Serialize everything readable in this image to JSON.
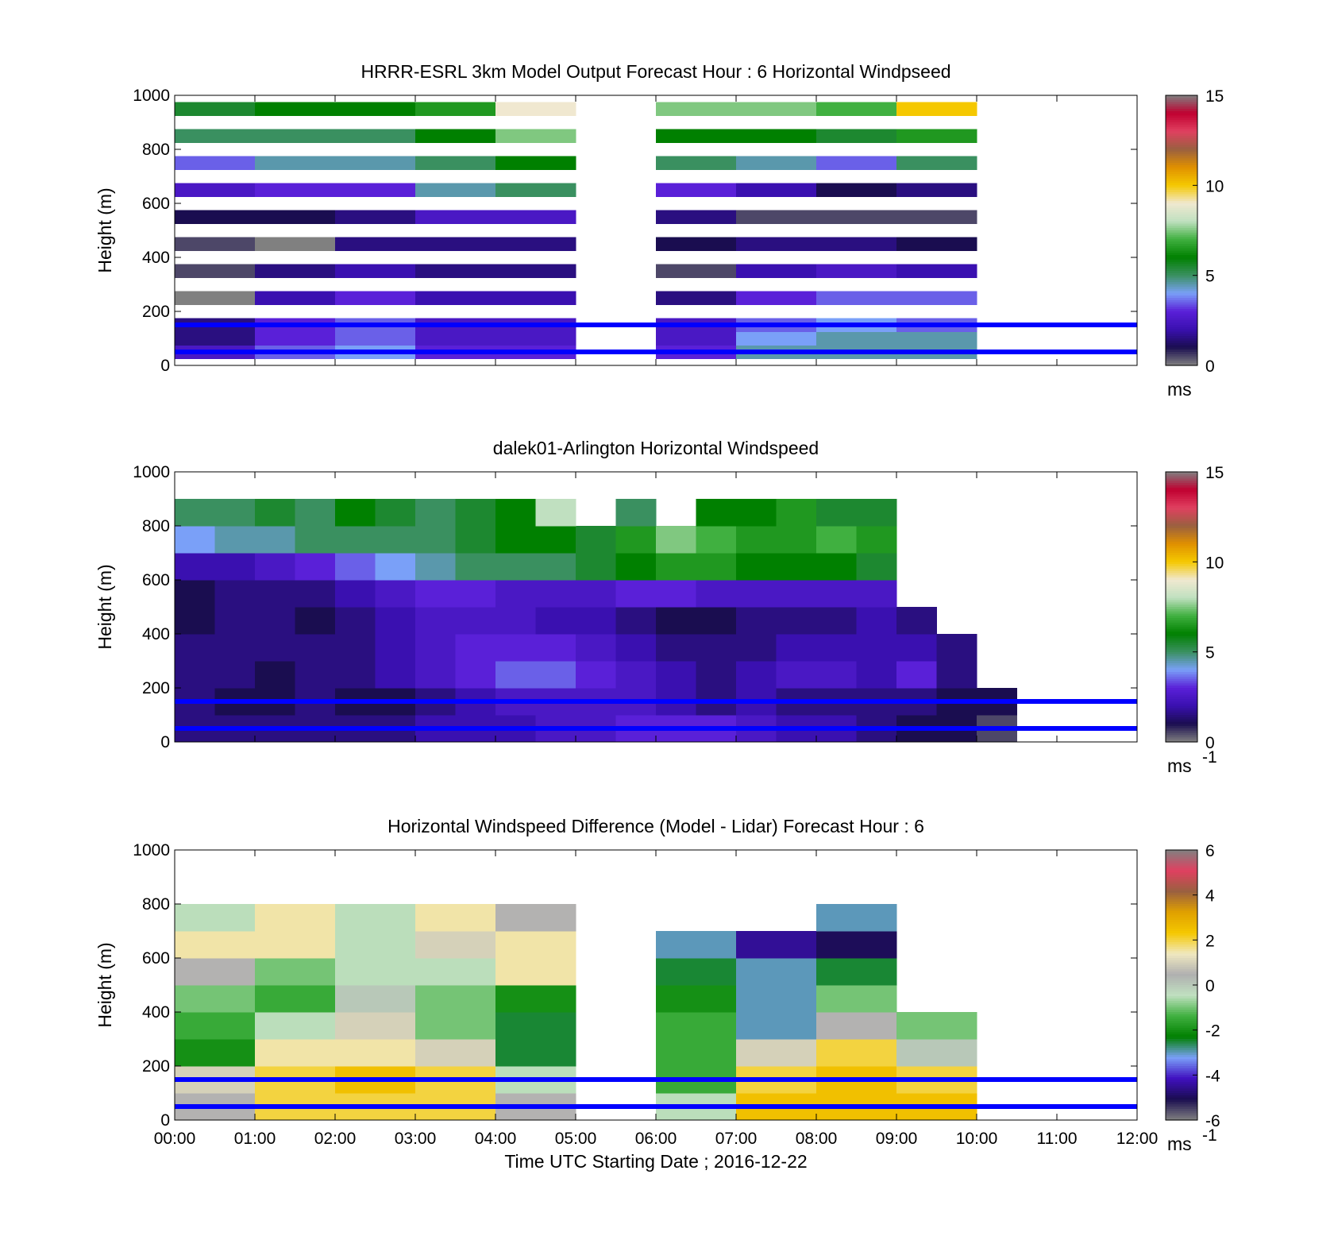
{
  "colors": {
    "background": "#ffffff",
    "reference_lines": "#0000ff",
    "speed_colormap": [
      "#808080",
      "#1a0d50",
      "#3a10b0",
      "#5a20d8",
      "#7aa0f8",
      "#3a9060",
      "#008000",
      "#40b040",
      "#c0e0c0",
      "#f0e8d0",
      "#f5c800",
      "#e09000",
      "#9a6040",
      "#e04060",
      "#c00030",
      "#808080"
    ],
    "diff_colormap": [
      "#808080",
      "#1a0d50",
      "#4010c0",
      "#7aa0f8",
      "#008000",
      "#40b040",
      "#c0e0c0",
      "#b0b0b0",
      "#f0e8c0",
      "#f5c800",
      "#e0a000",
      "#9a6040",
      "#e04060",
      "#808080"
    ]
  },
  "chart_data": [
    {
      "type": "heatmap",
      "title": "HRRR-ESRL 3km Model Output   Forecast Hour : 6 Horizontal Windpseed",
      "ylabel": "Height (m)",
      "xlabel": "",
      "ylim": [
        0,
        1000
      ],
      "yticks": [
        "0",
        "200",
        "400",
        "600",
        "800",
        "1000"
      ],
      "xticks": [
        "",
        "",
        "",
        "",
        "",
        "",
        "",
        "",
        "",
        "",
        "",
        "",
        ""
      ],
      "colorbar": {
        "min": 0,
        "max": 15,
        "ticks": [
          "0",
          "5",
          "10",
          "15"
        ],
        "unit": "ms"
      },
      "x_hours": [
        0.5,
        1.5,
        2.5,
        3.5,
        4.5,
        6.5,
        7.5,
        8.5,
        9.5
      ],
      "heights_m": [
        50,
        100,
        150,
        250,
        350,
        450,
        550,
        650,
        750,
        850,
        950
      ],
      "values": [
        [
          2.5,
          3.5,
          4.0,
          3.0,
          3.0,
          3.0,
          4.5,
          4.5,
          4.5
        ],
        [
          1.5,
          3.0,
          3.5,
          2.5,
          2.5,
          2.5,
          4.0,
          4.5,
          4.5
        ],
        [
          1.5,
          3.0,
          3.5,
          2.5,
          2.5,
          2.5,
          3.5,
          4.0,
          3.5
        ],
        [
          0.0,
          2.0,
          3.0,
          2.0,
          2.0,
          1.5,
          3.0,
          3.5,
          3.5
        ],
        [
          0.5,
          1.5,
          2.0,
          1.5,
          1.5,
          0.5,
          2.0,
          2.5,
          2.0
        ],
        [
          0.5,
          0.0,
          1.5,
          1.5,
          1.5,
          1.0,
          1.5,
          1.5,
          1.0
        ],
        [
          1.0,
          1.0,
          1.5,
          2.5,
          2.5,
          1.5,
          0.5,
          0.5,
          0.5
        ],
        [
          2.5,
          3.0,
          3.0,
          4.5,
          5.0,
          3.0,
          2.0,
          1.0,
          1.5
        ],
        [
          3.5,
          4.5,
          4.5,
          5.0,
          6.0,
          5.0,
          4.5,
          3.5,
          5.0
        ],
        [
          5.0,
          5.0,
          5.0,
          6.0,
          7.5,
          6.0,
          6.0,
          5.5,
          6.5
        ],
        [
          5.5,
          6.0,
          6.0,
          6.5,
          9.0,
          7.5,
          7.5,
          7.0,
          10.0
        ]
      ],
      "reference_lines_m": [
        50,
        150
      ]
    },
    {
      "type": "heatmap",
      "title": "dalek01-Arlington  Horizontal Windspeed",
      "ylabel": "Height (m)",
      "xlabel": "",
      "ylim": [
        0,
        1000
      ],
      "yticks": [
        "0",
        "200",
        "400",
        "600",
        "800",
        "1000"
      ],
      "xticks": [
        "",
        "",
        "",
        "",
        "",
        "",
        "",
        "",
        "",
        "",
        "",
        "",
        ""
      ],
      "colorbar": {
        "min": 0,
        "max": 15,
        "ticks": [
          "0",
          "5",
          "10",
          "15"
        ],
        "unit": "ms",
        "unit_exponent": "-1"
      },
      "x_hours": [
        0.25,
        0.75,
        1.25,
        1.75,
        2.25,
        2.75,
        3.25,
        3.75,
        4.25,
        4.75,
        5.25,
        5.75,
        6.25,
        6.75,
        7.25,
        7.75,
        8.25,
        8.75,
        9.25,
        9.75,
        10.25
      ],
      "heights_m": [
        50,
        150,
        250,
        350,
        450,
        550,
        650,
        750,
        850
      ],
      "values": [
        [
          1.5,
          1.5,
          1.5,
          1.5,
          1.5,
          1.5,
          2.0,
          2.0,
          2.0,
          2.5,
          2.5,
          3.0,
          3.0,
          3.0,
          2.5,
          2.0,
          2.0,
          1.5,
          1.0,
          1.0,
          0.5
        ],
        [
          1.5,
          1.0,
          1.0,
          1.5,
          1.0,
          1.0,
          1.5,
          2.0,
          2.5,
          2.5,
          2.5,
          2.5,
          2.0,
          1.5,
          2.0,
          1.5,
          1.5,
          1.5,
          1.5,
          1.0,
          1.0
        ],
        [
          1.5,
          1.5,
          1.0,
          1.5,
          1.5,
          2.0,
          2.5,
          3.0,
          3.5,
          3.5,
          3.0,
          2.5,
          2.0,
          1.5,
          2.0,
          2.5,
          2.5,
          2.0,
          3.0,
          1.5,
          null
        ],
        [
          1.5,
          1.5,
          1.5,
          1.5,
          1.5,
          2.0,
          2.5,
          3.0,
          3.0,
          3.0,
          2.5,
          2.0,
          1.5,
          1.5,
          1.5,
          2.0,
          2.0,
          2.0,
          2.0,
          1.5,
          null
        ],
        [
          1.0,
          1.5,
          1.5,
          1.0,
          1.5,
          2.0,
          2.5,
          2.5,
          2.5,
          2.0,
          2.0,
          1.5,
          1.0,
          1.0,
          1.5,
          1.5,
          1.5,
          2.0,
          1.5,
          null,
          null
        ],
        [
          1.0,
          1.5,
          1.5,
          1.5,
          2.0,
          2.5,
          3.0,
          3.0,
          2.5,
          2.5,
          2.5,
          3.0,
          3.0,
          2.5,
          2.5,
          2.5,
          2.5,
          2.5,
          null,
          null,
          null
        ],
        [
          2.0,
          2.0,
          2.5,
          3.0,
          3.5,
          4.0,
          4.5,
          5.0,
          5.0,
          5.0,
          5.5,
          6.0,
          6.5,
          6.5,
          6.0,
          6.0,
          6.0,
          5.5,
          null,
          null,
          null
        ],
        [
          4.0,
          4.5,
          4.5,
          5.0,
          5.0,
          5.0,
          5.0,
          5.5,
          6.0,
          6.0,
          5.5,
          6.5,
          7.5,
          7.0,
          6.5,
          6.5,
          7.0,
          6.5,
          null,
          null,
          null
        ],
        [
          5.0,
          5.0,
          5.5,
          5.0,
          6.0,
          5.5,
          5.0,
          5.5,
          6.0,
          8.0,
          null,
          5.0,
          null,
          6.0,
          6.0,
          6.5,
          5.5,
          5.5,
          null,
          null,
          null
        ]
      ],
      "reference_lines_m": [
        50,
        150
      ]
    },
    {
      "type": "heatmap",
      "title": "Horizontal Windspeed Difference (Model - Lidar) Forecast Hour : 6",
      "ylabel": "Height (m)",
      "xlabel": "Time UTC  Starting Date ; 2016-12-22",
      "ylim": [
        0,
        1000
      ],
      "yticks": [
        "0",
        "200",
        "400",
        "600",
        "800",
        "1000"
      ],
      "xticks": [
        "00:00",
        "01:00",
        "02:00",
        "03:00",
        "04:00",
        "05:00",
        "06:00",
        "07:00",
        "08:00",
        "09:00",
        "10:00",
        "11:00",
        "12:00"
      ],
      "colorbar": {
        "min": -6,
        "max": 6,
        "ticks": [
          "-6",
          "-4",
          "-2",
          "0",
          "2",
          "4",
          "6"
        ],
        "unit": "ms",
        "unit_exponent": "-1"
      },
      "x_hours": [
        0.5,
        1.5,
        2.5,
        3.5,
        4.5,
        6.5,
        7.5,
        8.5,
        9.5
      ],
      "heights_m": [
        50,
        150,
        250,
        350,
        450,
        550,
        650,
        750
      ],
      "values": [
        [
          0.5,
          2.0,
          2.0,
          2.0,
          0.5,
          -0.5,
          2.5,
          2.5,
          2.5
        ],
        [
          1.0,
          2.0,
          2.5,
          2.0,
          -0.5,
          -1.5,
          2.0,
          2.5,
          2.0
        ],
        [
          -2.0,
          1.5,
          1.5,
          1.0,
          -2.5,
          -1.5,
          1.0,
          2.0,
          0.0
        ],
        [
          -1.5,
          -0.5,
          1.0,
          -1.0,
          -2.5,
          -1.5,
          -3.0,
          0.5,
          -1.0
        ],
        [
          -1.0,
          -1.5,
          0.0,
          -1.0,
          -2.0,
          -2.0,
          -3.0,
          -1.0,
          null
        ],
        [
          0.5,
          -1.0,
          -0.5,
          -0.5,
          1.5,
          -2.5,
          -3.0,
          -2.5,
          null
        ],
        [
          1.5,
          1.5,
          -0.5,
          1.0,
          1.5,
          -3.0,
          -4.5,
          -5.0,
          null
        ],
        [
          -0.5,
          1.5,
          -0.5,
          1.5,
          0.5,
          null,
          null,
          -3.0,
          null
        ]
      ],
      "reference_lines_m": [
        50,
        150
      ]
    }
  ]
}
